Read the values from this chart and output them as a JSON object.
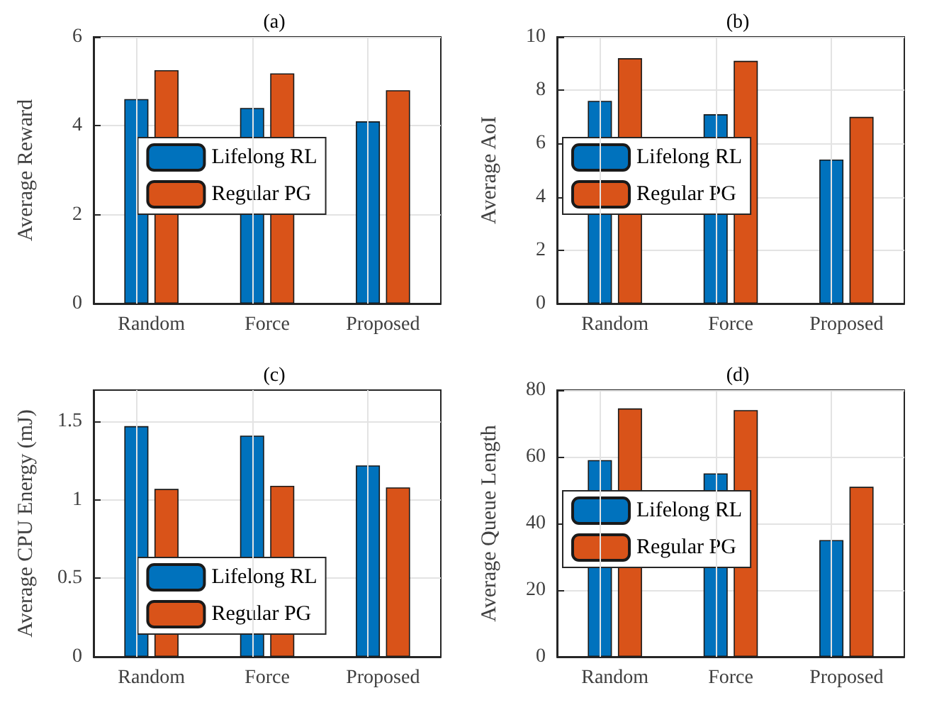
{
  "chart_data": [
    {
      "type": "bar",
      "title": "(a)",
      "ylabel": "Average Reward",
      "categories": [
        "Random",
        "Force",
        "Proposed"
      ],
      "series": [
        {
          "name": "Lifelong RL",
          "color": "#0072bd",
          "values": [
            4.6,
            4.4,
            4.1
          ]
        },
        {
          "name": "Regular PG",
          "color": "#d95319",
          "values": [
            5.25,
            5.18,
            4.8
          ]
        }
      ],
      "ylim": [
        0,
        6
      ],
      "yticks": [
        0,
        2,
        4,
        6
      ],
      "grid": true,
      "legend": "center"
    },
    {
      "type": "bar",
      "title": "(b)",
      "ylabel": "Average AoI",
      "categories": [
        "Random",
        "Force",
        "Proposed"
      ],
      "series": [
        {
          "name": "Lifelong RL",
          "color": "#0072bd",
          "values": [
            7.6,
            7.1,
            5.4
          ]
        },
        {
          "name": "Regular PG",
          "color": "#d95319",
          "values": [
            9.2,
            9.1,
            7.0
          ]
        }
      ],
      "ylim": [
        0,
        10
      ],
      "yticks": [
        0,
        2,
        4,
        6,
        8,
        10
      ],
      "grid": true,
      "legend": "left"
    },
    {
      "type": "bar",
      "title": "(c)",
      "ylabel": "Average CPU Energy (mJ)",
      "categories": [
        "Random",
        "Force",
        "Proposed"
      ],
      "series": [
        {
          "name": "Lifelong RL",
          "color": "#0072bd",
          "values": [
            1.47,
            1.41,
            1.22
          ]
        },
        {
          "name": "Regular PG",
          "color": "#d95319",
          "values": [
            1.07,
            1.09,
            1.08
          ]
        }
      ],
      "ylim": [
        0,
        1.7
      ],
      "yticks": [
        0,
        0.5,
        1,
        1.5
      ],
      "grid": true,
      "legend": "bottom"
    },
    {
      "type": "bar",
      "title": "(d)",
      "ylabel": "Average Queue Length",
      "categories": [
        "Random",
        "Force",
        "Proposed"
      ],
      "series": [
        {
          "name": "Lifelong RL",
          "color": "#0072bd",
          "values": [
            59,
            55,
            35
          ]
        },
        {
          "name": "Regular PG",
          "color": "#d95319",
          "values": [
            74.5,
            74,
            51
          ]
        }
      ],
      "ylim": [
        0,
        80
      ],
      "yticks": [
        0,
        20,
        40,
        60,
        80
      ],
      "grid": true,
      "legend": "left"
    }
  ]
}
